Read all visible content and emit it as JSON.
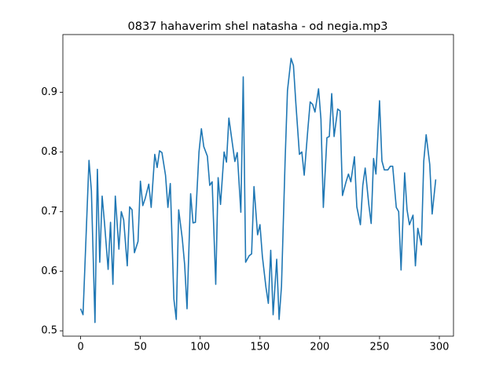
{
  "chart_data": {
    "type": "line",
    "title": "0837 hahaverim shel natasha - od negia.mp3",
    "x": [
      0,
      2,
      7,
      9,
      12,
      14,
      16,
      18,
      20,
      23,
      25,
      27,
      29,
      32,
      34,
      36,
      39,
      41,
      43,
      45,
      48,
      50,
      52,
      54,
      57,
      59,
      62,
      64,
      66,
      68,
      71,
      73,
      75,
      78,
      80,
      82,
      85,
      87,
      89,
      92,
      94,
      96,
      99,
      101,
      103,
      106,
      108,
      110,
      113,
      115,
      117,
      120,
      122,
      124,
      127,
      129,
      131,
      134,
      136,
      138,
      141,
      143,
      145,
      148,
      150,
      152,
      155,
      157,
      159,
      161,
      164,
      166,
      168,
      171,
      173,
      176,
      178,
      180,
      183,
      185,
      187,
      190,
      192,
      194,
      196,
      199,
      201,
      203,
      206,
      208,
      210,
      212,
      215,
      217,
      219,
      222,
      224,
      226,
      229,
      231,
      234,
      236,
      238,
      241,
      243,
      245,
      247,
      250,
      252,
      254,
      257,
      259,
      261,
      264,
      266,
      268,
      271,
      273,
      275,
      278,
      280,
      282,
      285,
      287,
      289,
      292,
      294,
      297
    ],
    "series": [
      {
        "color": "#1f77b4",
        "values": [
          0.537,
          0.527,
          0.786,
          0.735,
          0.514,
          0.771,
          0.615,
          0.726,
          0.68,
          0.603,
          0.682,
          0.578,
          0.726,
          0.637,
          0.7,
          0.686,
          0.609,
          0.708,
          0.703,
          0.631,
          0.65,
          0.751,
          0.71,
          0.722,
          0.746,
          0.707,
          0.796,
          0.774,
          0.802,
          0.799,
          0.761,
          0.707,
          0.747,
          0.553,
          0.519,
          0.703,
          0.655,
          0.611,
          0.537,
          0.73,
          0.681,
          0.682,
          0.8,
          0.839,
          0.809,
          0.793,
          0.744,
          0.75,
          0.578,
          0.757,
          0.712,
          0.8,
          0.783,
          0.857,
          0.813,
          0.784,
          0.799,
          0.699,
          0.926,
          0.615,
          0.626,
          0.629,
          0.742,
          0.661,
          0.678,
          0.625,
          0.573,
          0.546,
          0.635,
          0.527,
          0.62,
          0.519,
          0.575,
          0.784,
          0.903,
          0.957,
          0.945,
          0.882,
          0.796,
          0.8,
          0.761,
          0.837,
          0.884,
          0.88,
          0.867,
          0.906,
          0.855,
          0.707,
          0.824,
          0.826,
          0.898,
          0.826,
          0.872,
          0.869,
          0.727,
          0.75,
          0.763,
          0.75,
          0.792,
          0.708,
          0.678,
          0.744,
          0.773,
          0.712,
          0.68,
          0.789,
          0.763,
          0.886,
          0.785,
          0.77,
          0.77,
          0.776,
          0.776,
          0.707,
          0.7,
          0.602,
          0.765,
          0.703,
          0.678,
          0.694,
          0.609,
          0.672,
          0.644,
          0.785,
          0.829,
          0.779,
          0.696,
          0.754
        ]
      }
    ],
    "xlim": [
      -14.85,
      311.85
    ],
    "xticks": [
      0,
      50,
      100,
      150,
      200,
      250,
      300
    ],
    "ylim": [
      0.491,
      0.997
    ],
    "yticks": [
      0.5,
      0.6,
      0.7,
      0.8,
      0.9
    ]
  }
}
